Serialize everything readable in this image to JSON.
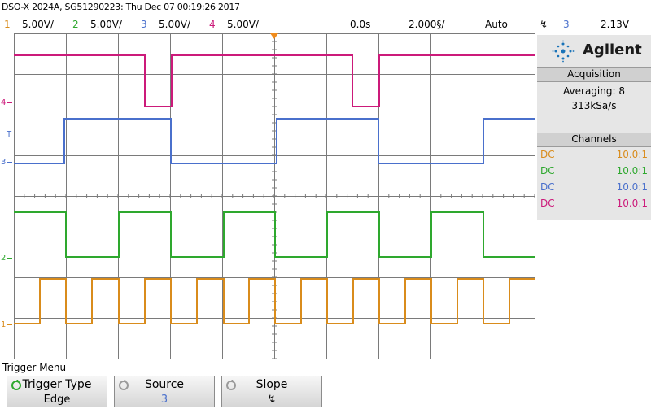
{
  "header": {
    "title": "DSO-X 2024A, SG51290223: Thu Dec 07 00:19:26 2017"
  },
  "channel_bar": {
    "ch1": {
      "num": "1",
      "scale": "5.00V/",
      "color": "#d98c1c"
    },
    "ch2": {
      "num": "2",
      "scale": "5.00V/",
      "color": "#2ea82e"
    },
    "ch3": {
      "num": "3",
      "scale": "5.00V/",
      "color": "#4a70cc"
    },
    "ch4": {
      "num": "4",
      "scale": "5.00V/",
      "color": "#cc1a7a"
    },
    "delay": "0.0s",
    "timebase": "2.000§/",
    "mode": "Auto",
    "trig_source": "3",
    "trig_level": "2.13V"
  },
  "brand": {
    "name": "Agilent"
  },
  "acquisition": {
    "heading": "Acquisition",
    "mode": "Averaging: 8",
    "rate": "313kSa/s"
  },
  "channels_panel": {
    "heading": "Channels",
    "rows": [
      {
        "coupling": "DC",
        "probe": "10.0:1",
        "color": "#d98c1c"
      },
      {
        "coupling": "DC",
        "probe": "10.0:1",
        "color": "#2ea82e"
      },
      {
        "coupling": "DC",
        "probe": "10.0:1",
        "color": "#4a70cc"
      },
      {
        "coupling": "DC",
        "probe": "10.0:1",
        "color": "#cc1a7a"
      }
    ]
  },
  "ground_markers": {
    "ch4": "4",
    "ch3": "3",
    "ch2": "2",
    "ch1": "1",
    "trig_level_mark": "T"
  },
  "softkey_menu": {
    "title": "Trigger Menu",
    "keys": [
      {
        "label": "Trigger Type",
        "value": "Edge"
      },
      {
        "label": "Source",
        "value": "3"
      },
      {
        "label": "Slope",
        "value": "↯"
      }
    ]
  },
  "colors": {
    "grid": "#7a7a7a",
    "ch1": "#d98c1c",
    "ch2": "#2ea82e",
    "ch3": "#4a70cc",
    "ch4": "#cc1a7a",
    "trigger_marker": "#f08c1c"
  }
}
